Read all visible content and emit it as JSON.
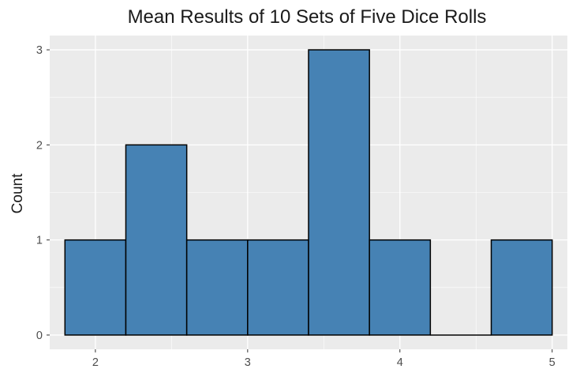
{
  "chart_data": {
    "type": "bar",
    "title": "Mean Results of 10 Sets of Five Dice Rolls",
    "xlabel": "",
    "ylabel": "Count",
    "bins": [
      {
        "x0": 1.8,
        "x1": 2.2,
        "count": 1
      },
      {
        "x0": 2.2,
        "x1": 2.6,
        "count": 2
      },
      {
        "x0": 2.6,
        "x1": 3.0,
        "count": 1
      },
      {
        "x0": 3.0,
        "x1": 3.4,
        "count": 1
      },
      {
        "x0": 3.4,
        "x1": 3.8,
        "count": 3
      },
      {
        "x0": 3.8,
        "x1": 4.2,
        "count": 1
      },
      {
        "x0": 4.2,
        "x1": 4.6,
        "count": 0
      },
      {
        "x0": 4.6,
        "x1": 5.0,
        "count": 1
      }
    ],
    "x_ticks": [
      2,
      3,
      4,
      5
    ],
    "y_ticks": [
      0,
      1,
      2,
      3
    ],
    "xlim": [
      1.7,
      5.1
    ],
    "ylim": [
      -0.15,
      3.15
    ],
    "grid": true,
    "colors": {
      "bar_fill": "#4682b4",
      "bar_stroke": "#000000",
      "panel_bg": "#ebebeb",
      "grid_major": "#ffffff"
    }
  }
}
